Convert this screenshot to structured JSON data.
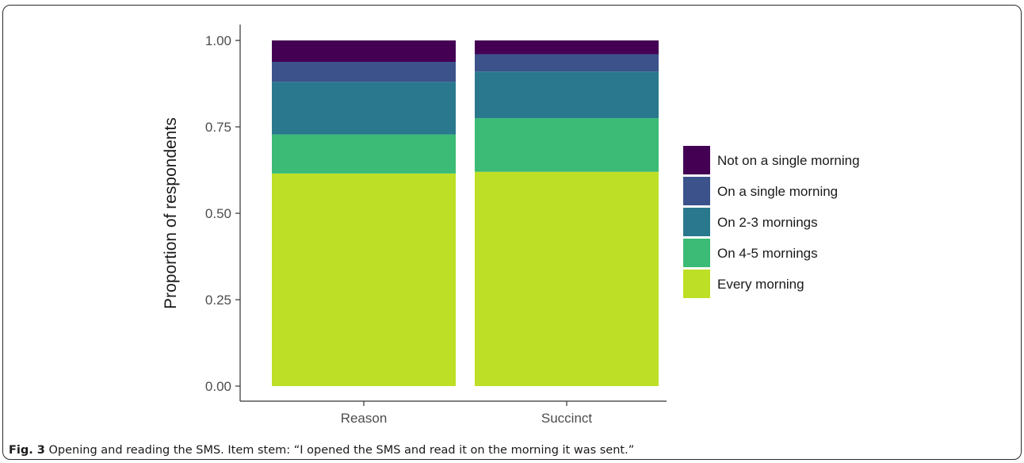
{
  "figure": {
    "label": "Fig. 3",
    "caption": " Opening and reading the SMS. Item stem: “I opened the SMS and read it on the morning it was sent.”"
  },
  "chart_data": {
    "type": "bar",
    "stacked": true,
    "categories": [
      "Reason",
      "Succinct"
    ],
    "ylabel": "Proportion of respondents",
    "xlabel": "",
    "ylim": [
      0,
      1
    ],
    "yticks": [
      "0.00",
      "0.25",
      "0.50",
      "0.75",
      "1.00"
    ],
    "grid": false,
    "legend_position": "right",
    "series": [
      {
        "name": "Every morning",
        "color": "#bddf26",
        "values": [
          0.615,
          0.62
        ]
      },
      {
        "name": "On 4-5 mornings",
        "color": "#3bbb75",
        "values": [
          0.113,
          0.155
        ]
      },
      {
        "name": "On 2-3 mornings",
        "color": "#2a788e",
        "values": [
          0.152,
          0.135
        ]
      },
      {
        "name": "On a single morning",
        "color": "#3b528b",
        "values": [
          0.058,
          0.05
        ]
      },
      {
        "name": "Not on a single morning",
        "color": "#440154",
        "values": [
          0.062,
          0.04
        ]
      }
    ]
  }
}
